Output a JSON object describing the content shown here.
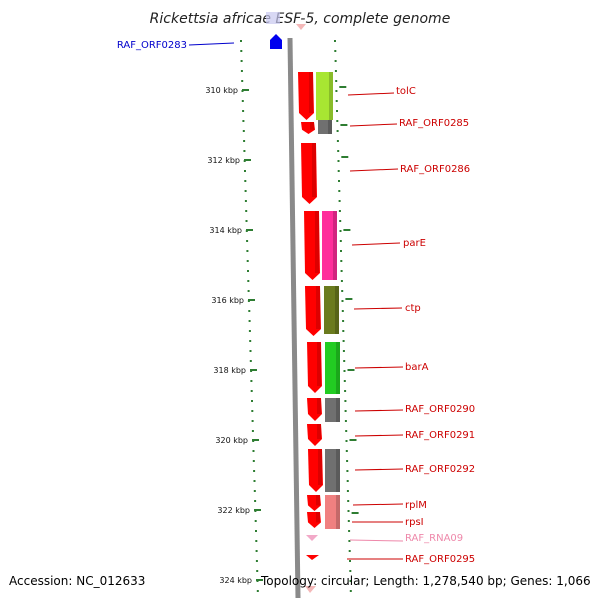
{
  "title": "Rickettsia africae ESF-5, complete genome",
  "footer": {
    "accession": "Accession: NC_012633",
    "topology": "Topology: circular; Length: 1,278,540 bp; Genes: 1,066"
  },
  "colors": {
    "backbone": "#8a8a8a",
    "tick": "#2e7d32",
    "cds": "#ff0000",
    "label_red": "#cc0000",
    "label_blue": "#0000cc",
    "label_pink": "#ee88aa"
  },
  "kbp_ticks": [
    "310 kbp",
    "312 kbp",
    "314 kbp",
    "316 kbp",
    "318 kbp",
    "320 kbp",
    "322 kbp",
    "324 kbp"
  ],
  "gene_labels": [
    {
      "text": "RAF_ORF0283",
      "color": "#0000cc"
    },
    {
      "text": "tolC",
      "color": "#cc0000"
    },
    {
      "text": "RAF_ORF0285",
      "color": "#cc0000"
    },
    {
      "text": "RAF_ORF0286",
      "color": "#cc0000"
    },
    {
      "text": "parE",
      "color": "#cc0000"
    },
    {
      "text": "ctp",
      "color": "#cc0000"
    },
    {
      "text": "barA",
      "color": "#cc0000"
    },
    {
      "text": "RAF_ORF0290",
      "color": "#cc0000"
    },
    {
      "text": "RAF_ORF0291",
      "color": "#cc0000"
    },
    {
      "text": "RAF_ORF0292",
      "color": "#cc0000"
    },
    {
      "text": "rplM",
      "color": "#cc0000"
    },
    {
      "text": "rpsI",
      "color": "#cc0000"
    },
    {
      "text": "RAF_RNA09",
      "color": "#ee88aa"
    },
    {
      "text": "RAF_ORF0295",
      "color": "#cc0000"
    }
  ],
  "feature_blocks": [
    {
      "name": "tolC",
      "color": "#a8e632"
    },
    {
      "name": "RAF_ORF0285",
      "color": "#707070"
    },
    {
      "name": "parE",
      "color": "#ff2d9b"
    },
    {
      "name": "ctp",
      "color": "#6b7b1e"
    },
    {
      "name": "barA",
      "color": "#22cc22"
    },
    {
      "name": "RAF_ORF0290",
      "color": "#707070"
    },
    {
      "name": "RAF_ORF0292",
      "color": "#707070"
    },
    {
      "name": "rplM",
      "color": "#f08080"
    },
    {
      "name": "rpsI",
      "color": "#f08080"
    }
  ]
}
